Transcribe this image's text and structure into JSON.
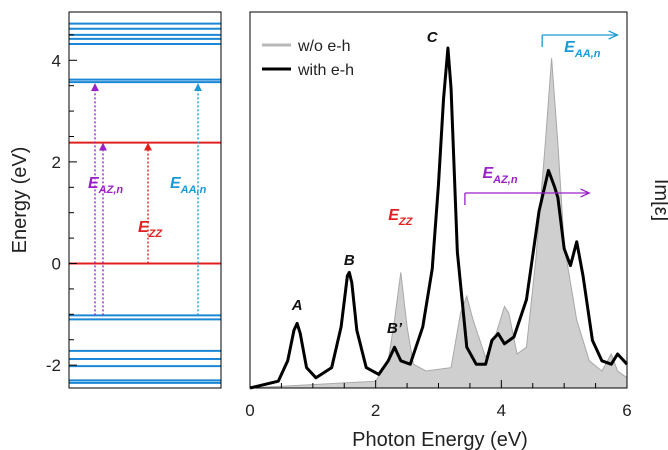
{
  "figure": {
    "left_panel": {
      "ylabel": "Energy (eV)",
      "ylim": [
        -2.45,
        4.95
      ],
      "yticks": [
        -2,
        0,
        2,
        4
      ],
      "minor_tick_step": 0.5,
      "blue_levels": [
        4.72,
        4.62,
        4.5,
        4.42,
        4.32,
        3.62,
        3.57,
        -1.02,
        -1.1,
        -1.72,
        -1.88,
        -2.02,
        -2.3,
        -2.35
      ],
      "red_levels": [
        2.38,
        0
      ],
      "colors": {
        "valence_conduction": "#1a88d6",
        "band_edge": "#e02020"
      },
      "transitions": [
        {
          "id": "az",
          "label": "E",
          "subscript": "AZ,n",
          "color": "#9a20c8",
          "arrows": [
            {
              "from": -1.02,
              "to": 3.55
            },
            {
              "from": -1.02,
              "to": 2.38
            }
          ]
        },
        {
          "id": "zz",
          "label": "E",
          "subscript": "ZZ",
          "color": "#e02020",
          "arrows": [
            {
              "from": 0,
              "to": 2.38
            }
          ]
        },
        {
          "id": "aa",
          "label": "E",
          "subscript": "AA,n",
          "color": "#1a9ad6",
          "arrows": [
            {
              "from": -1.02,
              "to": 3.55
            }
          ]
        }
      ]
    },
    "right_panel": {
      "xlabel": "Photon Energy (eV)",
      "ylabel": "Im[ε]",
      "xlim": [
        0,
        6
      ],
      "xticks": [
        0,
        2,
        4,
        6
      ],
      "minor_tick_step": 0.5,
      "legend": [
        {
          "label": "w/o e-h",
          "color": "#b8b8b8"
        },
        {
          "label": "with e-h",
          "color": "#000000"
        }
      ],
      "peak_labels": [
        {
          "text": "A",
          "x": 0.75
        },
        {
          "text": "B",
          "x": 1.58
        },
        {
          "text": "B’",
          "x": 2.3
        },
        {
          "text": "C",
          "x": 2.9
        }
      ],
      "annotations": [
        {
          "label": "E",
          "subscript": "ZZ",
          "color": "#e02020",
          "x": 2.2
        },
        {
          "label": "E",
          "subscript": "AZ,n",
          "color": "#9a20c8",
          "x": 3.7,
          "arrow_from": 3.42,
          "arrow_to": 5.4
        },
        {
          "label": "E",
          "subscript": "AA,n",
          "color": "#1a9ad6",
          "x": 5.0,
          "arrow_from": 4.65,
          "arrow_to": 5.85
        }
      ]
    }
  },
  "chart_data": [
    {
      "type": "line",
      "title": "",
      "ylabel": "Energy (eV)",
      "xlabel": "",
      "ylim": [
        -2.45,
        4.95
      ],
      "series": [
        {
          "values": [
            4.72,
            4.62,
            4.5,
            4.42,
            4.32,
            3.62,
            3.57,
            -1.02,
            -1.1,
            -1.72,
            -1.88,
            -2.02,
            -2.3,
            -2.35
          ]
        },
        {
          "values": [
            2.38,
            0
          ]
        }
      ]
    },
    {
      "type": "area",
      "title": "",
      "xlabel": "Photon Energy (eV)",
      "ylabel": "Im[ε]",
      "xlim": [
        0,
        6
      ],
      "ylim": [
        0,
        1
      ],
      "legend": "top-left",
      "series": [
        {
          "name": "w/o e-h",
          "x": [
            0,
            2.0,
            2.2,
            2.3,
            2.4,
            2.5,
            2.6,
            2.8,
            3.2,
            3.35,
            3.45,
            3.55,
            3.75,
            3.9,
            4.05,
            4.12,
            4.25,
            4.4,
            4.55,
            4.7,
            4.8,
            4.9,
            5.0,
            5.2,
            5.4,
            5.6,
            5.75,
            5.85,
            6.0
          ],
          "values": [
            0.0,
            0.02,
            0.08,
            0.2,
            0.34,
            0.18,
            0.07,
            0.05,
            0.06,
            0.22,
            0.27,
            0.2,
            0.09,
            0.15,
            0.24,
            0.22,
            0.1,
            0.12,
            0.38,
            0.72,
            0.97,
            0.72,
            0.42,
            0.2,
            0.08,
            0.05,
            0.1,
            0.05,
            0.03
          ]
        },
        {
          "name": "with e-h",
          "x": [
            0,
            0.45,
            0.6,
            0.7,
            0.75,
            0.8,
            0.9,
            1.05,
            1.3,
            1.45,
            1.55,
            1.58,
            1.62,
            1.7,
            1.85,
            2.05,
            2.2,
            2.3,
            2.4,
            2.55,
            2.75,
            2.9,
            3.0,
            3.08,
            3.15,
            3.2,
            3.3,
            3.45,
            3.6,
            3.75,
            3.85,
            3.95,
            4.05,
            4.2,
            4.4,
            4.6,
            4.75,
            4.85,
            4.9,
            5.0,
            5.1,
            5.2,
            5.3,
            5.45,
            5.6,
            5.75,
            5.85,
            6.0
          ],
          "values": [
            0.0,
            0.02,
            0.08,
            0.17,
            0.19,
            0.16,
            0.06,
            0.03,
            0.06,
            0.18,
            0.33,
            0.34,
            0.31,
            0.17,
            0.06,
            0.04,
            0.08,
            0.12,
            0.08,
            0.07,
            0.18,
            0.35,
            0.6,
            0.85,
            1.0,
            0.88,
            0.4,
            0.12,
            0.07,
            0.07,
            0.14,
            0.16,
            0.13,
            0.15,
            0.26,
            0.52,
            0.64,
            0.59,
            0.56,
            0.41,
            0.36,
            0.43,
            0.33,
            0.14,
            0.08,
            0.07,
            0.1,
            0.07
          ]
        }
      ]
    }
  ]
}
